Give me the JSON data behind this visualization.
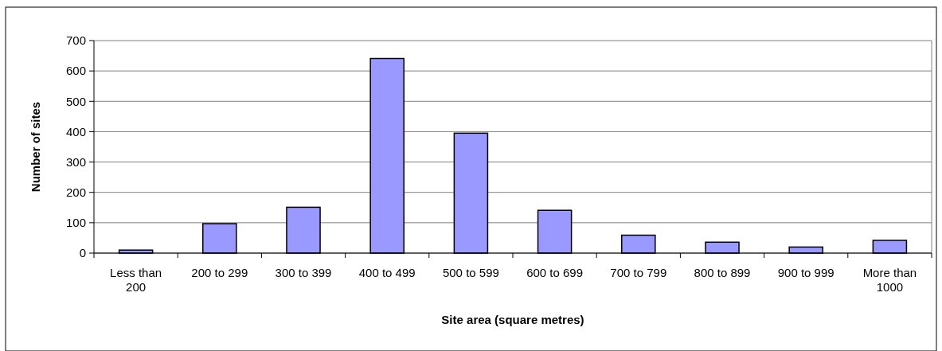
{
  "chart_data": {
    "type": "bar",
    "xlabel": "Site area (square metres)",
    "ylabel": "Number of sites",
    "categories": [
      "Less than 200",
      "200 to 299",
      "300 to 399",
      "400 to 499",
      "500 to 599",
      "600 to 699",
      "700 to 799",
      "800 to 899",
      "900 to 999",
      "More than 1000"
    ],
    "values": [
      10,
      97,
      151,
      641,
      395,
      141,
      59,
      36,
      20,
      42
    ],
    "color": "#9999ff",
    "ylim": [
      0,
      700
    ],
    "yticks": [
      0,
      100,
      200,
      300,
      400,
      500,
      600,
      700
    ],
    "grid": "y"
  }
}
